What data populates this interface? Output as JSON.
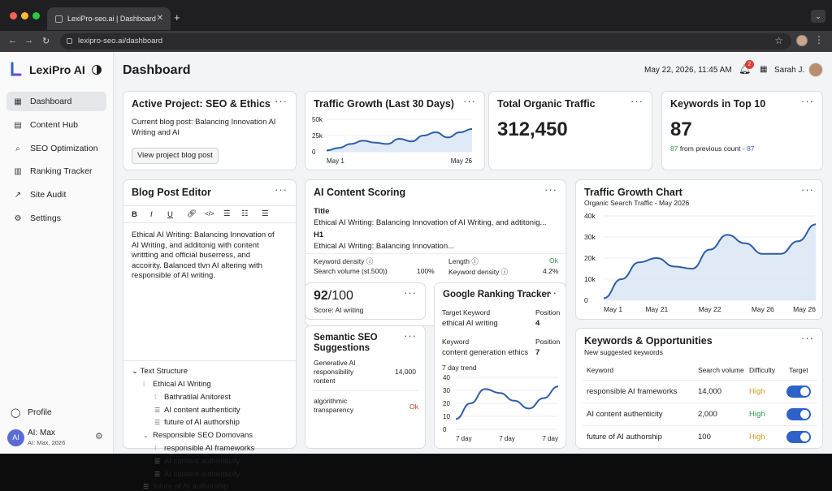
{
  "browser": {
    "tab_title": "LexiPro-seo.ai | Dashboard",
    "url": "lexipro-seo.ai/dashboard"
  },
  "app": {
    "name": "LexiPro AI",
    "nav": [
      {
        "label": "Dashboard",
        "icon": "grid-icon",
        "active": true
      },
      {
        "label": "Content Hub",
        "icon": "document-icon"
      },
      {
        "label": "SEO Optimization",
        "icon": "search-icon"
      },
      {
        "label": "Ranking Tracker",
        "icon": "bar-chart-icon"
      },
      {
        "label": "Site Audit",
        "icon": "trend-icon"
      },
      {
        "label": "Settings",
        "icon": "gear-icon"
      }
    ],
    "profile_label": "Profile",
    "user": {
      "initials": "AI",
      "name": "AI: Max",
      "sub": "AI: Max, 2026"
    }
  },
  "header": {
    "title": "Dashboard",
    "datetime": "May 22, 2026, 11:45 AM",
    "notifications": "2",
    "user": "Sarah J."
  },
  "active_project": {
    "title": "Active Project: SEO & Ethics",
    "line1": "Current blog post: Balancing Innovation AI",
    "line2": "Writing and AI",
    "button": "View project blog post"
  },
  "traffic_growth": {
    "title": "Traffic Growth (Last 30 Days)",
    "chart_data": {
      "type": "area",
      "x_labels": [
        "May 1",
        "May 26"
      ],
      "y_ticks": [
        "0",
        "25k",
        "50k"
      ],
      "ylim": [
        0,
        50000
      ],
      "values": [
        2000,
        6000,
        12000,
        17000,
        14000,
        12000,
        20000,
        16000,
        25000,
        30000,
        22000,
        30000,
        35000
      ]
    }
  },
  "organic": {
    "title": "Total Organic Traffic",
    "value": "312,450"
  },
  "keywords_top10": {
    "title": "Keywords in Top 10",
    "value": "87",
    "delta": "87",
    "delta_text": "from previous count -",
    "delta_prev": "87"
  },
  "editor": {
    "title": "Blog Post Editor",
    "toolbar": [
      "B",
      "I",
      "U",
      "link",
      "code",
      "bullet",
      "number",
      "list"
    ],
    "body": [
      "Ethical AI Writing: Balancing Innovation of",
      "AI Writing, and additonig with content",
      "writtting and official buserress, and",
      "accoirity. Balanced tlvn AI altering with",
      "responsible of AI writing."
    ],
    "tree_title": "Text Structure",
    "tree": [
      {
        "label": "Ethical AI Writing",
        "level": 1,
        "tag": "I I"
      },
      {
        "label": "Bathratilal Anitorest",
        "level": 2,
        "tag": "I I"
      },
      {
        "label": "AI content authenticity",
        "level": 2,
        "tag": "list"
      },
      {
        "label": "future of AI authorship",
        "level": 2,
        "tag": "list"
      },
      {
        "label": "Responsible SEO Domovans",
        "level": 1,
        "tag": "chev"
      },
      {
        "label": "responsible AI frameworks",
        "level": 2,
        "tag": "I I"
      },
      {
        "label": "AI content authenticity",
        "level": 2,
        "tag": "list"
      },
      {
        "label": "AI content authenticity",
        "level": 2,
        "tag": "list"
      },
      {
        "label": "future of AI authorship",
        "level": 1,
        "tag": "list"
      }
    ]
  },
  "scoring": {
    "title": "AI Content Scoring",
    "title_label": "Title",
    "title_value": "Ethical AI Writing: Balancing Innovation of AI Writing, and adtitonig...",
    "h1_label": "H1",
    "h1_value": "Ethical AI Writing: Balancing Innovation...",
    "kd_label": "Keyword density",
    "length_label": "Length",
    "length_value": "Ok",
    "sv_label": "Search volume (st.500))",
    "sv_value": "100%",
    "kd2_label": "Keyword density",
    "kd2_value": "4.2%"
  },
  "score": {
    "value": "92",
    "max": "/100",
    "label": "Score: AI writing"
  },
  "semantic": {
    "title": "Semantic SEO Suggestions",
    "items": [
      {
        "label": "Generative AI responsibility rontent",
        "value": "14,000"
      },
      {
        "label": "algorithmic transparency",
        "value": "Ok"
      }
    ]
  },
  "ranking": {
    "title": "Google Ranking Tracker",
    "rows": [
      {
        "k_label": "Target Keyword",
        "k_value": "ethical AI writing",
        "p_label": "Position",
        "p_value": "4"
      },
      {
        "k_label": "Keyword",
        "k_value": "content generation ethics",
        "p_label": "Position",
        "p_value": "7"
      }
    ],
    "trend_label": "7 day trend",
    "chart_data": {
      "type": "line",
      "x_labels": [
        "7 day",
        "7 day",
        "7 day"
      ],
      "y_ticks": [
        "0",
        "10",
        "20",
        "30",
        "40"
      ],
      "ylim": [
        0,
        40
      ],
      "values": [
        8,
        20,
        31,
        28,
        22,
        16,
        24,
        33
      ]
    }
  },
  "traffic_chart": {
    "title": "Traffic Growth Chart",
    "subtitle": "Organic Search Traffic - May 2026",
    "chart_data": {
      "type": "area",
      "x_labels": [
        "May 1",
        "May 21",
        "May 22",
        "May 26",
        "May 26"
      ],
      "y_ticks": [
        "0",
        "10k",
        "20k",
        "30k",
        "40k"
      ],
      "ylim": [
        0,
        40000
      ],
      "values": [
        1000,
        10000,
        18000,
        20000,
        16000,
        15000,
        24000,
        31000,
        27000,
        22000,
        22000,
        28000,
        36000
      ]
    }
  },
  "opportunities": {
    "title": "Keywords & Opportunities",
    "subtitle": "New suggested keywords",
    "headers": [
      "Keyword",
      "Search volume",
      "Difficulty",
      "Target"
    ],
    "rows": [
      {
        "keyword": "responsible AI frameworks",
        "volume": "14,000",
        "difficulty": "High",
        "color": "#d99a1b"
      },
      {
        "keyword": "AI content authenticity",
        "volume": "2,000",
        "difficulty": "High",
        "color": "#2f9b4e"
      },
      {
        "keyword": "future of AI authorship",
        "volume": "100",
        "difficulty": "High",
        "color": "#d99a1b"
      }
    ]
  },
  "colors": {
    "accent": "#2f62c9",
    "chart_line": "#2e5ea8",
    "chart_fill": "#dbe6f5",
    "ok_green": "#2f9b4e",
    "warn_red": "#c0392b"
  }
}
